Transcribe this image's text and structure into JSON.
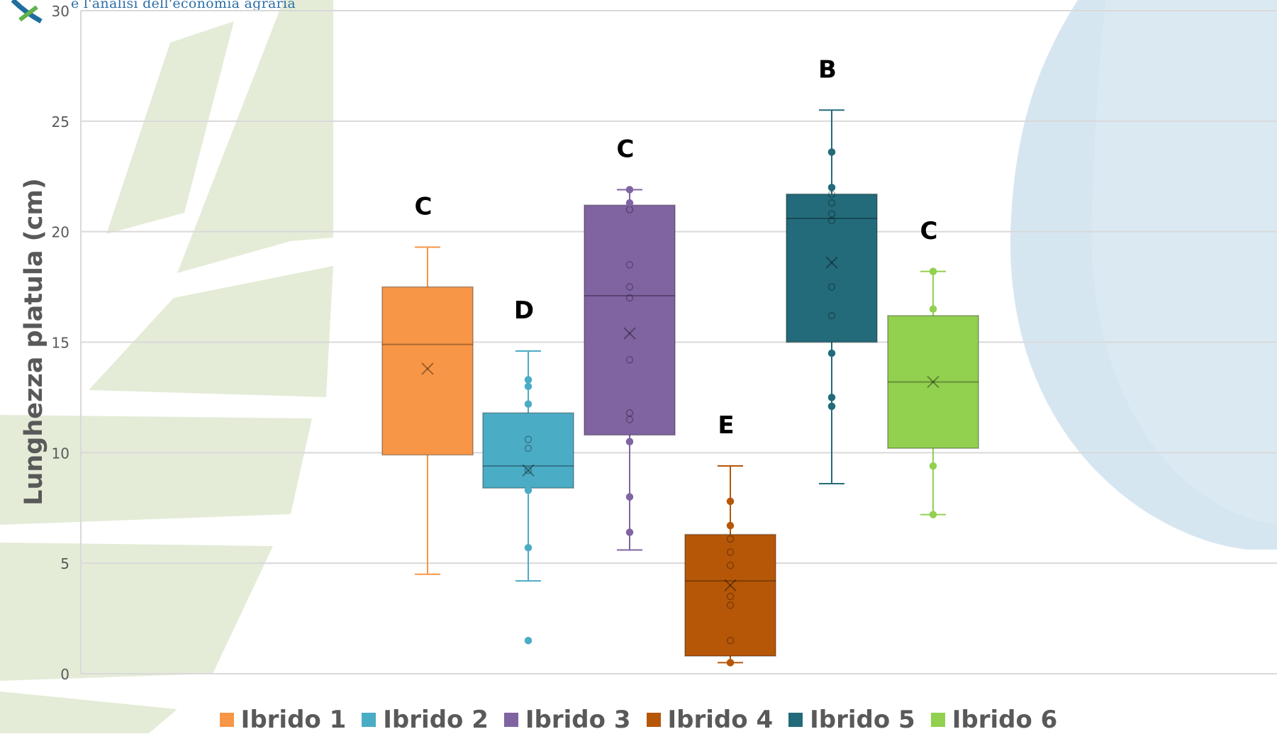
{
  "logo": {
    "text": "e l'analisi dell'economia agraria"
  },
  "chart_data": {
    "type": "boxplot",
    "title": "",
    "xlabel": "",
    "ylabel": "Lunghezza platula (cm)",
    "ylim": [
      0,
      30
    ],
    "yticks": [
      0,
      5,
      10,
      15,
      20,
      25,
      30
    ],
    "grid": true,
    "legend_position": "bottom",
    "series": [
      {
        "name": "Ibrido 1",
        "color": "#f79646",
        "letter": "C",
        "min": 4.5,
        "q1": 9.9,
        "median": 14.9,
        "q3": 17.5,
        "max": 19.3,
        "mean": 13.8,
        "points": []
      },
      {
        "name": "Ibrido 2",
        "color": "#4bacc6",
        "letter": "D",
        "min": 4.2,
        "q1": 8.4,
        "median": 9.4,
        "q3": 11.8,
        "max": 14.6,
        "mean": 9.2,
        "points": [
          1.5,
          5.7,
          8.3,
          9.2,
          10.2,
          10.6,
          12.2,
          13.0,
          13.3
        ]
      },
      {
        "name": "Ibrido 3",
        "color": "#8064a2",
        "letter": "C",
        "min": 5.6,
        "q1": 10.8,
        "median": 17.1,
        "q3": 21.2,
        "max": 21.9,
        "mean": 15.4,
        "points": [
          6.4,
          8.0,
          10.5,
          11.5,
          11.8,
          14.2,
          17.0,
          17.5,
          18.5,
          21.0,
          21.3,
          21.9
        ]
      },
      {
        "name": "Ibrido 4",
        "color": "#b65708",
        "letter": "E",
        "min": 0.5,
        "q1": 0.8,
        "median": 4.2,
        "q3": 6.3,
        "max": 9.4,
        "mean": 4.0,
        "points": [
          0.5,
          1.5,
          3.1,
          3.5,
          4.9,
          5.5,
          6.1,
          6.7,
          7.8
        ]
      },
      {
        "name": "Ibrido 5",
        "color": "#236b7a",
        "letter": "B",
        "min": 8.6,
        "q1": 15.0,
        "median": 20.6,
        "q3": 21.7,
        "max": 25.5,
        "mean": 18.6,
        "points": [
          12.1,
          12.5,
          14.5,
          16.2,
          17.5,
          20.5,
          20.8,
          21.3,
          21.7,
          22.0,
          23.6
        ]
      },
      {
        "name": "Ibrido 6",
        "color": "#92d050",
        "letter": "C",
        "min": 7.2,
        "q1": 10.2,
        "median": 13.2,
        "q3": 16.2,
        "max": 18.2,
        "mean": 13.2,
        "points": [
          7.2,
          9.4,
          16.5,
          18.2
        ]
      }
    ]
  }
}
